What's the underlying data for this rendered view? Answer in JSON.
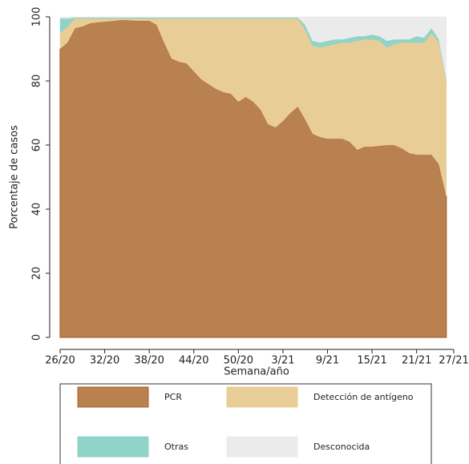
{
  "chart_data": {
    "type": "stacked_area",
    "xlabel": "Semana/año",
    "ylabel": "Porcentaje de casos",
    "categories": [
      "26/20",
      null,
      null,
      null,
      null,
      null,
      "32/20",
      null,
      null,
      null,
      null,
      null,
      "38/20",
      null,
      null,
      null,
      null,
      null,
      "44/20",
      null,
      null,
      null,
      null,
      null,
      "50/20",
      null,
      null,
      null,
      null,
      null,
      "3/21",
      null,
      null,
      null,
      null,
      null,
      "9/21",
      null,
      null,
      null,
      null,
      null,
      "15/21",
      null,
      null,
      null,
      null,
      null,
      "21/21",
      null,
      null,
      null,
      null,
      "27/21"
    ],
    "ylim": [
      0,
      100
    ],
    "yticks": [
      0,
      20,
      40,
      60,
      80,
      100
    ],
    "series": [
      {
        "name": "PCR",
        "color": "#b98050",
        "values": [
          90,
          92,
          96.5,
          97,
          98,
          98.3,
          98.5,
          98.7,
          99,
          99,
          98.8,
          98.8,
          98.8,
          97.5,
          92,
          87,
          86,
          85.5,
          83,
          80.5,
          79,
          77.5,
          76.5,
          76,
          73.5,
          75,
          73.5,
          71,
          66.5,
          65.5,
          67.5,
          70,
          72,
          68,
          63.5,
          62.5,
          62,
          62,
          62,
          61,
          58.5,
          59.5,
          59.5,
          59.8,
          60,
          60,
          59,
          57.5,
          57,
          57,
          57,
          54,
          44,
          null
        ]
      },
      {
        "name": "Detección de antígeno",
        "color": "#e8cd96",
        "values": [
          5,
          5,
          3,
          2.5,
          1.5,
          1.2,
          1,
          0.8,
          0.5,
          0.5,
          0.7,
          0.7,
          0.7,
          2,
          7.5,
          12.5,
          13.5,
          14,
          16.5,
          19,
          20.5,
          22,
          23,
          23.5,
          26,
          24.5,
          26,
          28.5,
          33,
          34,
          32,
          29.5,
          27.5,
          28,
          27.5,
          28,
          29,
          29.5,
          30,
          31,
          34,
          33.5,
          33.5,
          32.7,
          30.5,
          31.5,
          33,
          34.5,
          35,
          35,
          38,
          38,
          36,
          null
        ]
      },
      {
        "name": "Otras",
        "color": "#8fd3c9",
        "values": [
          4.5,
          2.5,
          0.3,
          0.3,
          0.3,
          0.3,
          0.3,
          0.3,
          0.3,
          0.3,
          0.3,
          0.3,
          0.3,
          0.3,
          0.3,
          0.3,
          0.3,
          0.3,
          0.3,
          0.3,
          0.3,
          0.3,
          0.3,
          0.3,
          0.3,
          0.3,
          0.3,
          0.3,
          0.3,
          0.3,
          0.3,
          0.3,
          0.3,
          1.5,
          1.5,
          1.5,
          1.5,
          1.5,
          1,
          1.5,
          1.5,
          1,
          1.5,
          1.5,
          2,
          1.5,
          1,
          1,
          2,
          1.5,
          1.5,
          1,
          0.5,
          null
        ]
      },
      {
        "name": "Desconocida",
        "color": "#ebebeb",
        "values": [
          0.5,
          0.5,
          0.2,
          0.2,
          0.2,
          0.2,
          0.2,
          0.2,
          0.2,
          0.2,
          0.2,
          0.2,
          0.2,
          0.2,
          0.2,
          0.2,
          0.2,
          0.2,
          0.2,
          0.2,
          0.2,
          0.2,
          0.2,
          0.2,
          0.2,
          0.2,
          0.2,
          0.2,
          0.2,
          0.2,
          0.2,
          0.2,
          0.2,
          2.5,
          7.5,
          8,
          7.5,
          7,
          7,
          6.5,
          6,
          6,
          5.5,
          6,
          7.5,
          7,
          7,
          7,
          6,
          6.5,
          3.5,
          7,
          19.5,
          null
        ]
      }
    ]
  }
}
